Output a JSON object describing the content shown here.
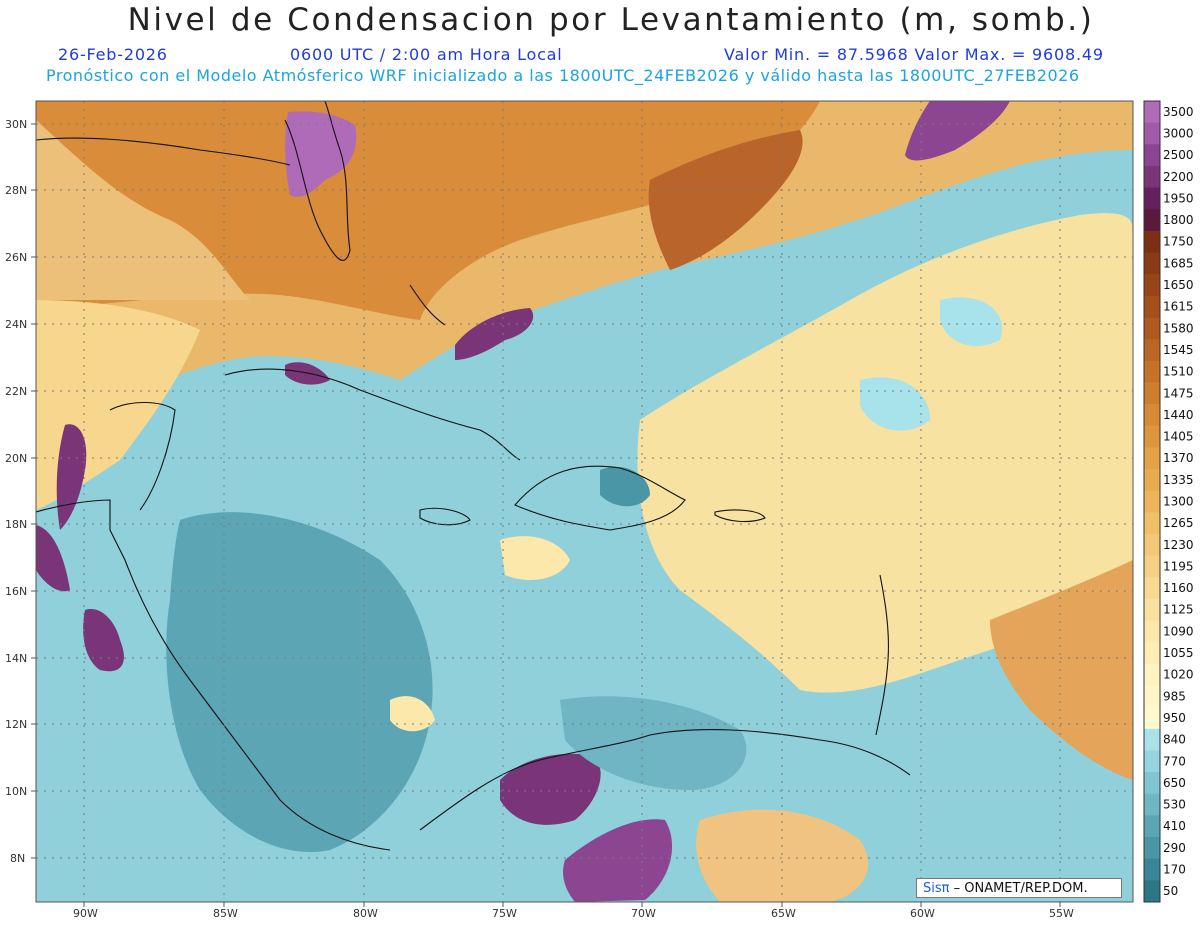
{
  "header": {
    "title": "Nivel de Condensacion por Levantamiento (m, somb.)",
    "date": "26-Feb-2026",
    "time": "0600 UTC / 2:00 am Hora Local",
    "stats": "Valor Min. = 87.5968   Valor Max. = 9608.49",
    "description": "Pronóstico con el Modelo Atmósferico WRF inicializado a las 1800UTC_24FEB2026 y válido hasta las  1800UTC_27FEB2026"
  },
  "axes": {
    "lat_labels": [
      "30N",
      "28N",
      "26N",
      "24N",
      "22N",
      "20N",
      "18N",
      "16N",
      "14N",
      "12N",
      "10N",
      "8N"
    ],
    "lon_labels": [
      "90W",
      "85W",
      "80W",
      "75W",
      "70W",
      "65W",
      "60W",
      "55W"
    ]
  },
  "colorbar": {
    "levels": [
      "3500",
      "3000",
      "2500",
      "2200",
      "1950",
      "1800",
      "1750",
      "1685",
      "1650",
      "1615",
      "1580",
      "1545",
      "1510",
      "1475",
      "1440",
      "1405",
      "1370",
      "1335",
      "1300",
      "1265",
      "1230",
      "1195",
      "1160",
      "1125",
      "1090",
      "1055",
      "1020",
      "985",
      "950",
      "840",
      "770",
      "650",
      "530",
      "410",
      "290",
      "170",
      "50"
    ],
    "colors": [
      "#b06bb8",
      "#a05aa8",
      "#8c4590",
      "#7a3478",
      "#651f5f",
      "#5a1a3c",
      "#7c2f14",
      "#8a3a16",
      "#984418",
      "#a5501b",
      "#b05a1e",
      "#bb6623",
      "#c67228",
      "#cf7e2e",
      "#d78a35",
      "#de963c",
      "#e4a145",
      "#e9ab4f",
      "#edb55b",
      "#f0bf68",
      "#f3c876",
      "#f6d184",
      "#f8d991",
      "#fae19e",
      "#fbe8aa",
      "#fceeb5",
      "#fdf3c0",
      "#fef6c8",
      "#fef8cf",
      "#a8e2ea",
      "#96d4df",
      "#82c5d2",
      "#6fb5c4",
      "#5ca5b5",
      "#4a95a6",
      "#3a8597",
      "#2c7688"
    ]
  },
  "credit": {
    "brand": "Sisπ",
    "text": " – ONAMET/REP.DOM."
  }
}
